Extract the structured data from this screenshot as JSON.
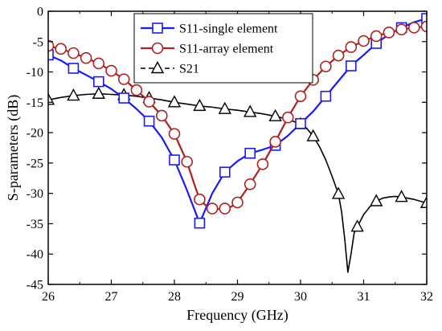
{
  "chart_data": {
    "type": "line",
    "title": "",
    "xlabel": "Frequency (GHz)",
    "ylabel": "S-parameters (dB)",
    "xlim": [
      26,
      32
    ],
    "ylim": [
      -45,
      0
    ],
    "xticks": [
      26,
      27,
      28,
      29,
      30,
      31,
      32
    ],
    "yticks": [
      0,
      -5,
      -10,
      -15,
      -20,
      -25,
      -30,
      -35,
      -40,
      -45
    ],
    "grid": false,
    "legend_position": "top-center",
    "series": [
      {
        "name": "S11-single element",
        "color": "#1a1aff",
        "marker": "square",
        "line": [
          [
            26.0,
            -7.2
          ],
          [
            26.2,
            -8.1
          ],
          [
            26.4,
            -9.4
          ],
          [
            26.6,
            -10.5
          ],
          [
            26.8,
            -11.6
          ],
          [
            27.0,
            -12.8
          ],
          [
            27.2,
            -14.3
          ],
          [
            27.4,
            -16.1
          ],
          [
            27.6,
            -18.1
          ],
          [
            27.8,
            -20.8
          ],
          [
            28.0,
            -24.5
          ],
          [
            28.2,
            -29.5
          ],
          [
            28.4,
            -34.9
          ],
          [
            28.6,
            -30.0
          ],
          [
            28.8,
            -26.5
          ],
          [
            29.0,
            -24.7
          ],
          [
            29.2,
            -23.4
          ],
          [
            29.4,
            -22.8
          ],
          [
            29.6,
            -22.1
          ],
          [
            29.8,
            -20.5
          ],
          [
            30.0,
            -18.5
          ],
          [
            30.2,
            -16.5
          ],
          [
            30.4,
            -14.0
          ],
          [
            30.6,
            -11.5
          ],
          [
            30.8,
            -9.0
          ],
          [
            31.0,
            -7.2
          ],
          [
            31.2,
            -5.3
          ],
          [
            31.4,
            -3.8
          ],
          [
            31.6,
            -2.7
          ],
          [
            31.8,
            -1.8
          ],
          [
            32.0,
            -1.2
          ]
        ],
        "markers": [
          [
            26.0,
            -7.2
          ],
          [
            26.4,
            -9.4
          ],
          [
            26.8,
            -11.6
          ],
          [
            27.2,
            -14.3
          ],
          [
            27.6,
            -18.1
          ],
          [
            28.0,
            -24.5
          ],
          [
            28.4,
            -34.9
          ],
          [
            28.8,
            -26.5
          ],
          [
            29.2,
            -23.4
          ],
          [
            29.6,
            -22.1
          ],
          [
            30.0,
            -18.5
          ],
          [
            30.4,
            -14.0
          ],
          [
            30.8,
            -9.0
          ],
          [
            31.2,
            -5.3
          ],
          [
            31.6,
            -2.7
          ],
          [
            32.0,
            -1.2
          ]
        ]
      },
      {
        "name": "S11-array element",
        "color": "#b02020",
        "marker": "circle",
        "line": [
          [
            26.0,
            -5.7
          ],
          [
            26.2,
            -6.2
          ],
          [
            26.4,
            -6.9
          ],
          [
            26.6,
            -7.7
          ],
          [
            26.8,
            -8.6
          ],
          [
            27.0,
            -9.8
          ],
          [
            27.2,
            -11.2
          ],
          [
            27.4,
            -13.0
          ],
          [
            27.6,
            -14.9
          ],
          [
            27.8,
            -17.2
          ],
          [
            28.0,
            -20.2
          ],
          [
            28.2,
            -24.8
          ],
          [
            28.3,
            -28.0
          ],
          [
            28.4,
            -31.0
          ],
          [
            28.5,
            -32.0
          ],
          [
            28.6,
            -32.5
          ],
          [
            28.7,
            -32.6
          ],
          [
            28.8,
            -32.5
          ],
          [
            28.9,
            -32.2
          ],
          [
            29.0,
            -31.5
          ],
          [
            29.2,
            -28.5
          ],
          [
            29.4,
            -25.2
          ],
          [
            29.6,
            -21.5
          ],
          [
            29.8,
            -17.5
          ],
          [
            30.0,
            -14.0
          ],
          [
            30.2,
            -11.3
          ],
          [
            30.4,
            -9.1
          ],
          [
            30.6,
            -7.3
          ],
          [
            30.8,
            -5.9
          ],
          [
            31.0,
            -4.9
          ],
          [
            31.2,
            -4.1
          ],
          [
            31.4,
            -3.5
          ],
          [
            31.6,
            -3.0
          ],
          [
            31.8,
            -2.7
          ],
          [
            32.0,
            -2.5
          ]
        ],
        "markers": [
          [
            26.0,
            -5.7
          ],
          [
            26.2,
            -6.2
          ],
          [
            26.4,
            -6.9
          ],
          [
            26.6,
            -7.7
          ],
          [
            26.8,
            -8.6
          ],
          [
            27.0,
            -9.8
          ],
          [
            27.2,
            -11.2
          ],
          [
            27.4,
            -13.0
          ],
          [
            27.6,
            -14.9
          ],
          [
            27.8,
            -17.2
          ],
          [
            28.0,
            -20.2
          ],
          [
            28.2,
            -24.8
          ],
          [
            28.4,
            -31.0
          ],
          [
            28.6,
            -32.5
          ],
          [
            28.8,
            -32.5
          ],
          [
            29.0,
            -31.5
          ],
          [
            29.2,
            -28.5
          ],
          [
            29.4,
            -25.2
          ],
          [
            29.6,
            -21.5
          ],
          [
            29.8,
            -17.5
          ],
          [
            30.0,
            -14.0
          ],
          [
            30.2,
            -11.3
          ],
          [
            30.4,
            -9.1
          ],
          [
            30.6,
            -7.3
          ],
          [
            30.8,
            -5.9
          ],
          [
            31.0,
            -4.9
          ],
          [
            31.2,
            -4.1
          ],
          [
            31.4,
            -3.5
          ],
          [
            31.6,
            -3.0
          ],
          [
            31.8,
            -2.7
          ],
          [
            32.0,
            -2.5
          ]
        ]
      },
      {
        "name": "S21",
        "color": "#000000",
        "marker": "triangle",
        "line": [
          [
            26.0,
            -14.6
          ],
          [
            26.2,
            -14.2
          ],
          [
            26.4,
            -13.9
          ],
          [
            26.6,
            -13.7
          ],
          [
            26.8,
            -13.6
          ],
          [
            27.0,
            -13.7
          ],
          [
            27.2,
            -13.8
          ],
          [
            27.4,
            -14.0
          ],
          [
            27.6,
            -14.3
          ],
          [
            27.8,
            -14.6
          ],
          [
            28.0,
            -15.0
          ],
          [
            28.2,
            -15.3
          ],
          [
            28.4,
            -15.6
          ],
          [
            28.6,
            -15.8
          ],
          [
            28.8,
            -16.1
          ],
          [
            29.0,
            -16.3
          ],
          [
            29.2,
            -16.6
          ],
          [
            29.4,
            -16.9
          ],
          [
            29.6,
            -17.3
          ],
          [
            29.8,
            -17.8
          ],
          [
            30.0,
            -18.6
          ],
          [
            30.1,
            -19.3
          ],
          [
            30.2,
            -20.6
          ],
          [
            30.3,
            -22.3
          ],
          [
            30.4,
            -24.5
          ],
          [
            30.5,
            -27.2
          ],
          [
            30.6,
            -30.1
          ],
          [
            30.65,
            -33.0
          ],
          [
            30.7,
            -37.5
          ],
          [
            30.75,
            -43.0
          ],
          [
            30.8,
            -40.0
          ],
          [
            30.85,
            -36.5
          ],
          [
            30.9,
            -35.5
          ],
          [
            31.0,
            -33.5
          ],
          [
            31.1,
            -32.2
          ],
          [
            31.2,
            -31.3
          ],
          [
            31.3,
            -30.8
          ],
          [
            31.4,
            -30.6
          ],
          [
            31.5,
            -30.5
          ],
          [
            31.6,
            -30.6
          ],
          [
            31.7,
            -30.8
          ],
          [
            31.8,
            -31.0
          ],
          [
            31.9,
            -31.3
          ],
          [
            32.0,
            -31.6
          ]
        ],
        "markers": [
          [
            26.0,
            -14.6
          ],
          [
            26.4,
            -13.9
          ],
          [
            26.8,
            -13.6
          ],
          [
            27.2,
            -13.8
          ],
          [
            27.6,
            -14.3
          ],
          [
            28.0,
            -15.0
          ],
          [
            28.4,
            -15.6
          ],
          [
            28.8,
            -16.1
          ],
          [
            29.2,
            -16.6
          ],
          [
            29.6,
            -17.3
          ],
          [
            30.0,
            -18.6
          ],
          [
            30.2,
            -20.6
          ],
          [
            30.6,
            -30.1
          ],
          [
            30.9,
            -35.5
          ],
          [
            31.2,
            -31.3
          ],
          [
            31.6,
            -30.6
          ],
          [
            32.0,
            -31.6
          ]
        ]
      }
    ]
  }
}
